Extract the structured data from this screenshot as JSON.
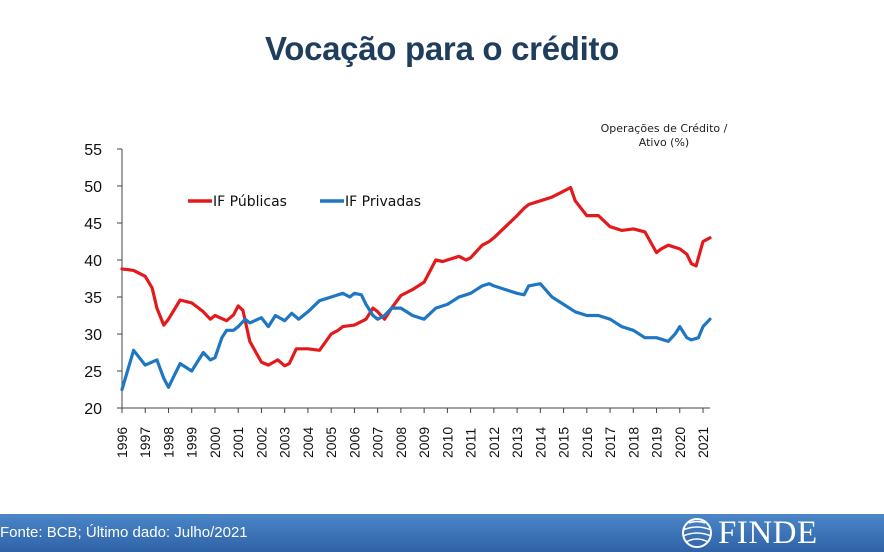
{
  "title": "Vocação para o crédito",
  "unit_note_line1": "Operações de Crédito /",
  "unit_note_line2": "Ativo (%)",
  "footer": {
    "source": "Fonte: BCB; Último dado: Julho/2021",
    "logo_text": "FINDE"
  },
  "colors": {
    "public": "#e31a1c",
    "private": "#1f77c4",
    "title": "#1f3e5e",
    "footer": "#3a72b8"
  },
  "chart_data": {
    "type": "line",
    "title": "Vocação para o crédito",
    "ylim": [
      20,
      55
    ],
    "yticks": [
      20,
      25,
      30,
      35,
      40,
      45,
      50,
      55
    ],
    "xticks": [
      "1996",
      "1997",
      "1998",
      "1999",
      "2000",
      "2001",
      "2002",
      "2003",
      "2004",
      "2005",
      "2006",
      "2007",
      "2008",
      "2009",
      "2010",
      "2011",
      "2012",
      "2013",
      "2014",
      "2015",
      "2016",
      "2017",
      "2018",
      "2019",
      "2020",
      "2021"
    ],
    "legend_position": "top-left",
    "series": [
      {
        "name": "IF Públicas",
        "color": "#e31a1c",
        "x": [
          1996.0,
          1996.5,
          1997.0,
          1997.3,
          1997.5,
          1997.8,
          1998.0,
          1998.5,
          1999.0,
          1999.3,
          1999.5,
          1999.8,
          2000.0,
          2000.5,
          2000.8,
          2001.0,
          2001.2,
          2001.5,
          2002.0,
          2002.3,
          2002.7,
          2003.0,
          2003.2,
          2003.5,
          2004.0,
          2004.5,
          2005.0,
          2005.3,
          2005.5,
          2006.0,
          2006.5,
          2006.8,
          2007.0,
          2007.3,
          2007.6,
          2008.0,
          2008.5,
          2009.0,
          2009.5,
          2009.8,
          2010.0,
          2010.5,
          2010.8,
          2011.0,
          2011.5,
          2011.8,
          2012.0,
          2012.5,
          2013.0,
          2013.3,
          2013.5,
          2014.0,
          2014.5,
          2015.0,
          2015.3,
          2015.5,
          2016.0,
          2016.5,
          2017.0,
          2017.5,
          2018.0,
          2018.5,
          2019.0,
          2019.2,
          2019.5,
          2020.0,
          2020.3,
          2020.5,
          2020.7,
          2021.0,
          2021.3
        ],
        "values": [
          38.8,
          38.6,
          37.8,
          36.2,
          33.5,
          31.2,
          32.0,
          34.6,
          34.2,
          33.5,
          33.0,
          32.0,
          32.5,
          31.8,
          32.6,
          33.8,
          33.2,
          29.0,
          26.2,
          25.8,
          26.5,
          25.7,
          26.0,
          28.0,
          28.0,
          27.8,
          30.0,
          30.5,
          31.0,
          31.2,
          32.0,
          33.5,
          33.0,
          32.0,
          33.5,
          35.2,
          36.0,
          37.0,
          40.0,
          39.8,
          40.0,
          40.5,
          40.0,
          40.3,
          42.0,
          42.5,
          43.0,
          44.5,
          46.0,
          47.0,
          47.5,
          48.0,
          48.5,
          49.3,
          49.8,
          48.0,
          46.0,
          46.0,
          44.5,
          44.0,
          44.2,
          43.8,
          41.0,
          41.5,
          42.0,
          41.5,
          40.8,
          39.5,
          39.2,
          42.5,
          43.0
        ]
      },
      {
        "name": "IF Privadas",
        "color": "#1f77c4",
        "x": [
          1996.0,
          1996.5,
          1997.0,
          1997.5,
          1997.8,
          1998.0,
          1998.5,
          1999.0,
          1999.5,
          1999.8,
          2000.0,
          2000.3,
          2000.5,
          2000.8,
          2001.0,
          2001.3,
          2001.5,
          2002.0,
          2002.3,
          2002.6,
          2003.0,
          2003.3,
          2003.6,
          2004.0,
          2004.5,
          2005.0,
          2005.5,
          2005.8,
          2006.0,
          2006.3,
          2006.5,
          2006.8,
          2007.0,
          2007.3,
          2007.6,
          2008.0,
          2008.5,
          2009.0,
          2009.5,
          2009.8,
          2010.0,
          2010.5,
          2010.8,
          2011.0,
          2011.5,
          2011.8,
          2012.0,
          2012.5,
          2013.0,
          2013.3,
          2013.5,
          2014.0,
          2014.5,
          2015.0,
          2015.5,
          2016.0,
          2016.5,
          2017.0,
          2017.5,
          2018.0,
          2018.5,
          2019.0,
          2019.5,
          2019.8,
          2020.0,
          2020.3,
          2020.5,
          2020.8,
          2021.0,
          2021.3
        ],
        "values": [
          22.5,
          27.8,
          25.8,
          26.5,
          24.0,
          22.8,
          26.0,
          25.0,
          27.5,
          26.5,
          26.8,
          29.5,
          30.5,
          30.5,
          31.0,
          32.0,
          31.5,
          32.2,
          31.0,
          32.5,
          31.8,
          32.8,
          32.0,
          33.0,
          34.5,
          35.0,
          35.5,
          35.0,
          35.5,
          35.3,
          34.0,
          32.5,
          32.0,
          32.5,
          33.5,
          33.5,
          32.5,
          32.0,
          33.5,
          33.8,
          34.0,
          35.0,
          35.3,
          35.5,
          36.5,
          36.8,
          36.5,
          36.0,
          35.5,
          35.3,
          36.5,
          36.8,
          35.0,
          34.0,
          33.0,
          32.5,
          32.5,
          32.0,
          31.0,
          30.5,
          29.5,
          29.5,
          29.0,
          30.0,
          31.0,
          29.5,
          29.2,
          29.5,
          31.0,
          32.0
        ]
      }
    ]
  }
}
